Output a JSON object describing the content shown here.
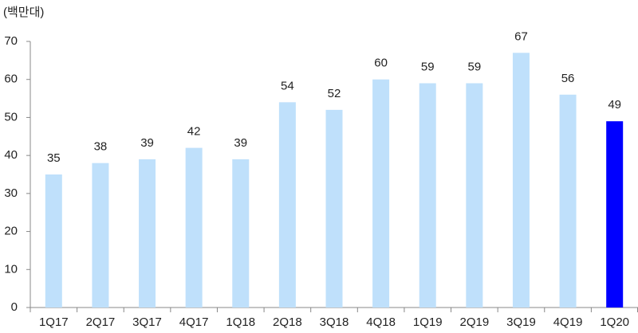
{
  "chart_data": {
    "type": "bar",
    "y_unit_label": "(백만대)",
    "categories": [
      "1Q17",
      "2Q17",
      "3Q17",
      "4Q17",
      "1Q18",
      "2Q18",
      "3Q18",
      "4Q18",
      "1Q19",
      "2Q19",
      "3Q19",
      "4Q19",
      "1Q20"
    ],
    "values": [
      35,
      38,
      39,
      42,
      39,
      54,
      52,
      60,
      59,
      59,
      67,
      56,
      49
    ],
    "colors": [
      "#bfe0fb",
      "#bfe0fb",
      "#bfe0fb",
      "#bfe0fb",
      "#bfe0fb",
      "#bfe0fb",
      "#bfe0fb",
      "#bfe0fb",
      "#bfe0fb",
      "#bfe0fb",
      "#bfe0fb",
      "#bfe0fb",
      "#0000ff"
    ],
    "ylim": [
      0,
      70
    ],
    "yticks": [
      0,
      10,
      20,
      30,
      40,
      50,
      60,
      70
    ],
    "grid": false
  }
}
